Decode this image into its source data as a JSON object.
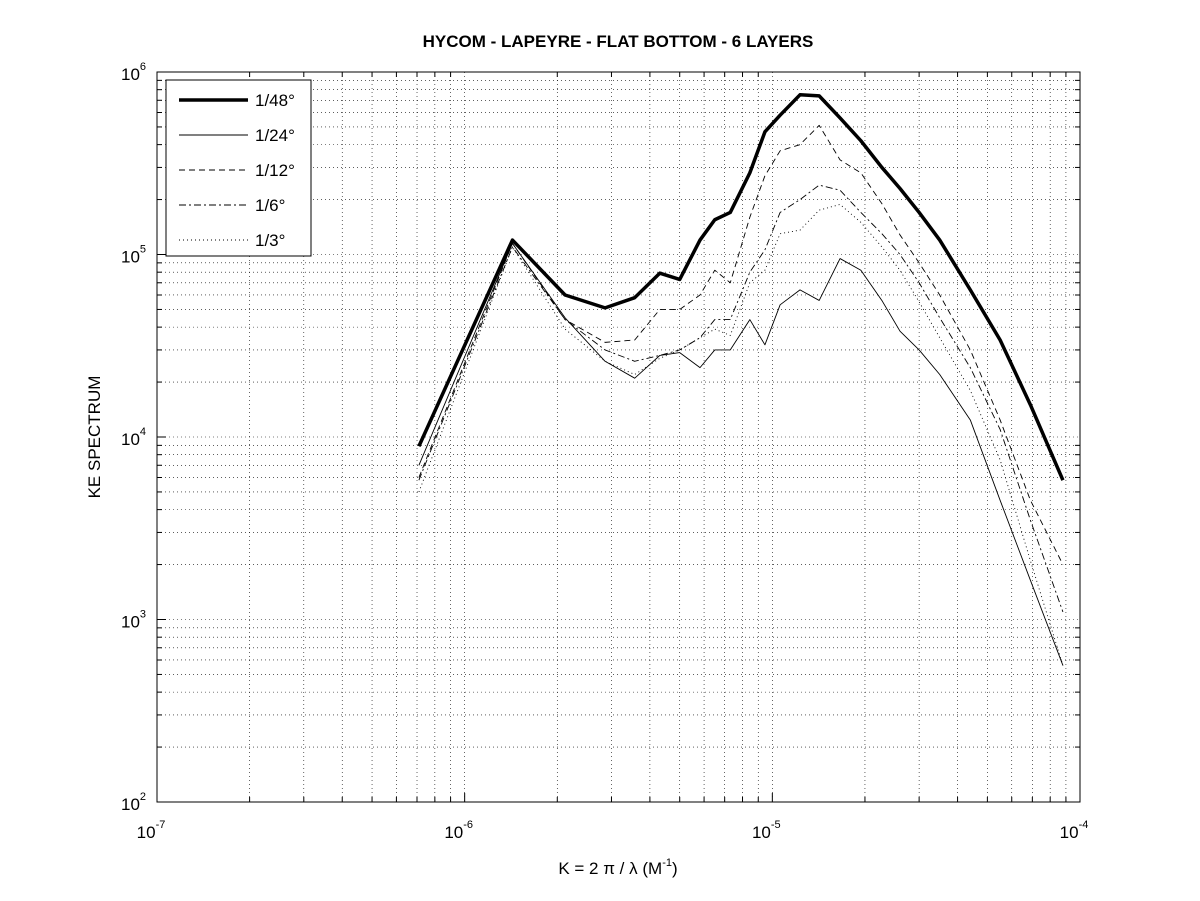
{
  "chart_data": {
    "type": "line",
    "title": "HYCOM - LAPEYRE - FLAT BOTTOM - 6 LAYERS",
    "x_label": {
      "text": "K = 2 π / λ  (M",
      "exponent": "-1",
      "suffix": ")"
    },
    "y_label": "KE SPECTRUM",
    "log_x": true,
    "log_y": true,
    "grid": true,
    "legend": "upper-left",
    "xlim": [
      1e-07,
      0.0001
    ],
    "ylim": [
      100,
      1000000
    ],
    "xticks": [
      {
        "value": 1e-07,
        "label": "10",
        "exponent": "-7"
      },
      {
        "value": 1e-06,
        "label": "10",
        "exponent": "-6"
      },
      {
        "value": 1e-05,
        "label": "10",
        "exponent": "-5"
      },
      {
        "value": 0.0001,
        "label": "10",
        "exponent": "-4"
      }
    ],
    "yticks": [
      {
        "value": 100,
        "label": "10",
        "exponent": "2"
      },
      {
        "value": 1000,
        "label": "10",
        "exponent": "3"
      },
      {
        "value": 10000,
        "label": "10",
        "exponent": "4"
      },
      {
        "value": 100000,
        "label": "10",
        "exponent": "5"
      },
      {
        "value": 1000000,
        "label": "10",
        "exponent": "6"
      }
    ],
    "x": [
      7.1e-07,
      1.43e-06,
      2.12e-06,
      2.86e-06,
      3.57e-06,
      4.31e-06,
      5e-06,
      5.82e-06,
      6.5e-06,
      7.3e-06,
      8.45e-06,
      9.46e-06,
      1.06e-05,
      1.23e-05,
      1.42e-05,
      1.66e-05,
      1.94e-05,
      2.27e-05,
      2.6e-05,
      3e-05,
      3.5e-05,
      4.4e-05,
      5.5e-05,
      6.9e-05,
      8.8e-05
    ],
    "series": [
      {
        "name": "1/48°",
        "color": "#000000",
        "width": 3.5,
        "dash": "none",
        "values": [
          8900,
          120000,
          60000,
          51000,
          58000,
          79000,
          73000,
          120000,
          155000,
          170000,
          280000,
          470000,
          580000,
          750000,
          740000,
          560000,
          420000,
          300000,
          230000,
          170000,
          120000,
          64000,
          34000,
          15000,
          5800
        ]
      },
      {
        "name": "1/24°",
        "color": "#000000",
        "width": 0.9,
        "dash": "none",
        "values": [
          7000,
          115000,
          45000,
          26000,
          21000,
          28000,
          29000,
          24000,
          30000,
          30000,
          44000,
          32000,
          53000,
          64000,
          56000,
          95000,
          82000,
          56000,
          38000,
          30000,
          22000,
          12400,
          4500,
          1640,
          560
        ]
      },
      {
        "name": "1/12°",
        "color": "#000000",
        "width": 0.9,
        "dash": "6 4",
        "values": [
          6000,
          115000,
          44000,
          33000,
          34000,
          50000,
          50000,
          60000,
          82000,
          70000,
          160000,
          270000,
          370000,
          400000,
          510000,
          330000,
          280000,
          190000,
          128000,
          90000,
          60000,
          30000,
          12400,
          4500,
          2000
        ]
      },
      {
        "name": "1/6°",
        "color": "#000000",
        "width": 0.9,
        "dash": "7 3 2 3",
        "values": [
          5800,
          110000,
          44000,
          30000,
          26000,
          28000,
          30000,
          35000,
          44000,
          44000,
          80000,
          106000,
          170000,
          200000,
          240000,
          225000,
          170000,
          130000,
          100000,
          70000,
          45000,
          24000,
          11000,
          3500,
          1100
        ]
      },
      {
        "name": "1/3°",
        "color": "#000000",
        "width": 0.9,
        "dash": "1 3",
        "values": [
          5000,
          110000,
          39000,
          26000,
          22000,
          27000,
          30000,
          35000,
          39000,
          36000,
          70000,
          82000,
          130000,
          136000,
          175000,
          188000,
          150000,
          110000,
          82000,
          55000,
          35000,
          18000,
          7500,
          2100,
          560
        ]
      }
    ]
  }
}
